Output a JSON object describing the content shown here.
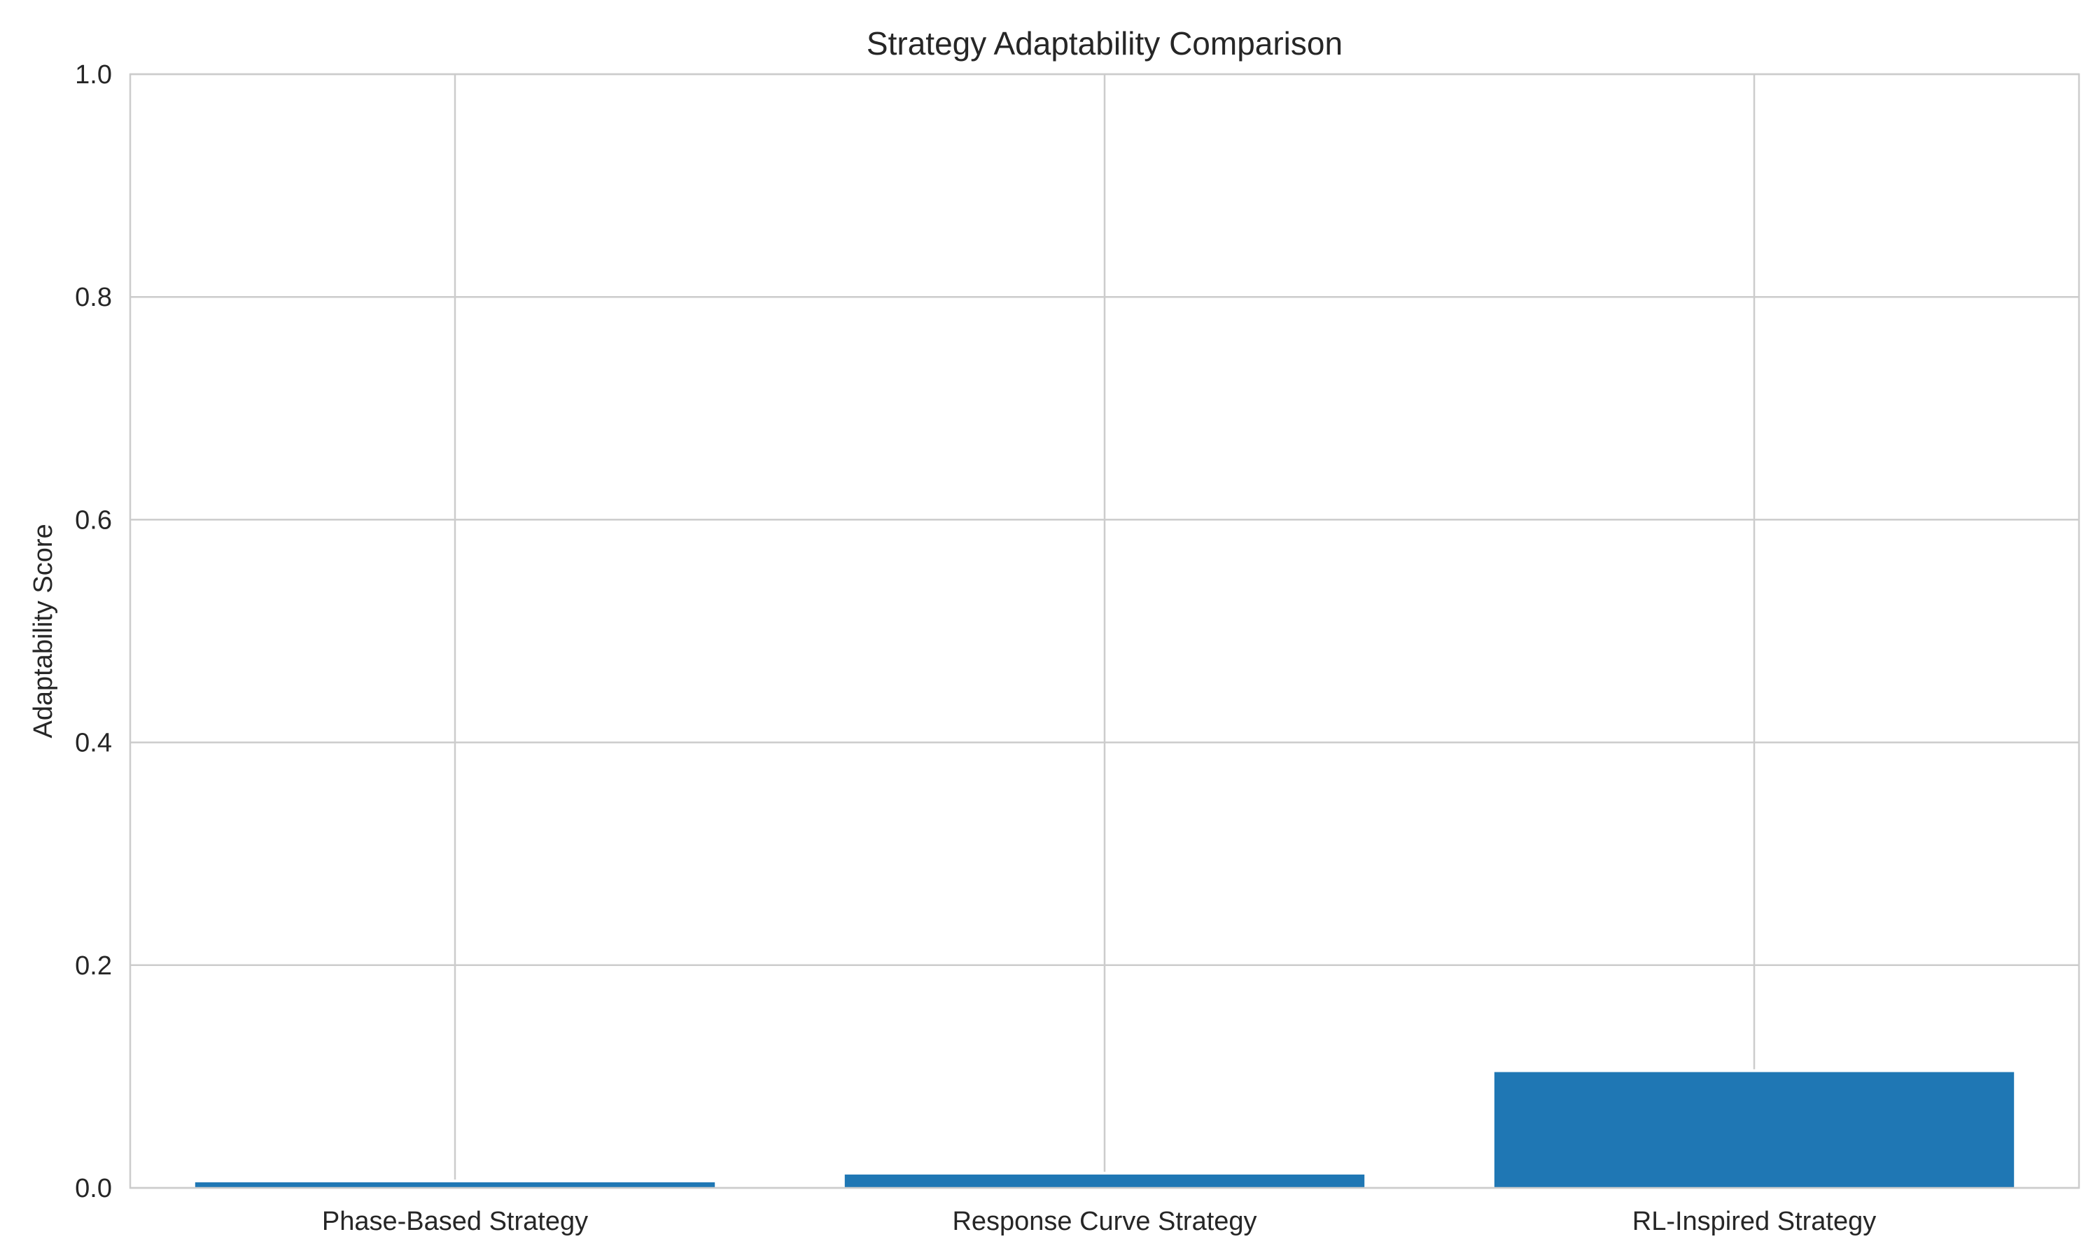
{
  "chart_data": {
    "type": "bar",
    "title": "Strategy Adaptability Comparison",
    "xlabel": "",
    "ylabel": "Adaptability Score",
    "categories": [
      "Phase-Based Strategy",
      "Response Curve Strategy",
      "RL-Inspired Strategy"
    ],
    "values": [
      0.005,
      0.012,
      0.104
    ],
    "ylim": [
      0,
      1.0
    ],
    "yticks": [
      "0.0",
      "0.2",
      "0.4",
      "0.6",
      "0.8",
      "1.0"
    ],
    "grid": true,
    "bar_color": "#1f77b4",
    "grid_color": "#cccccc"
  }
}
